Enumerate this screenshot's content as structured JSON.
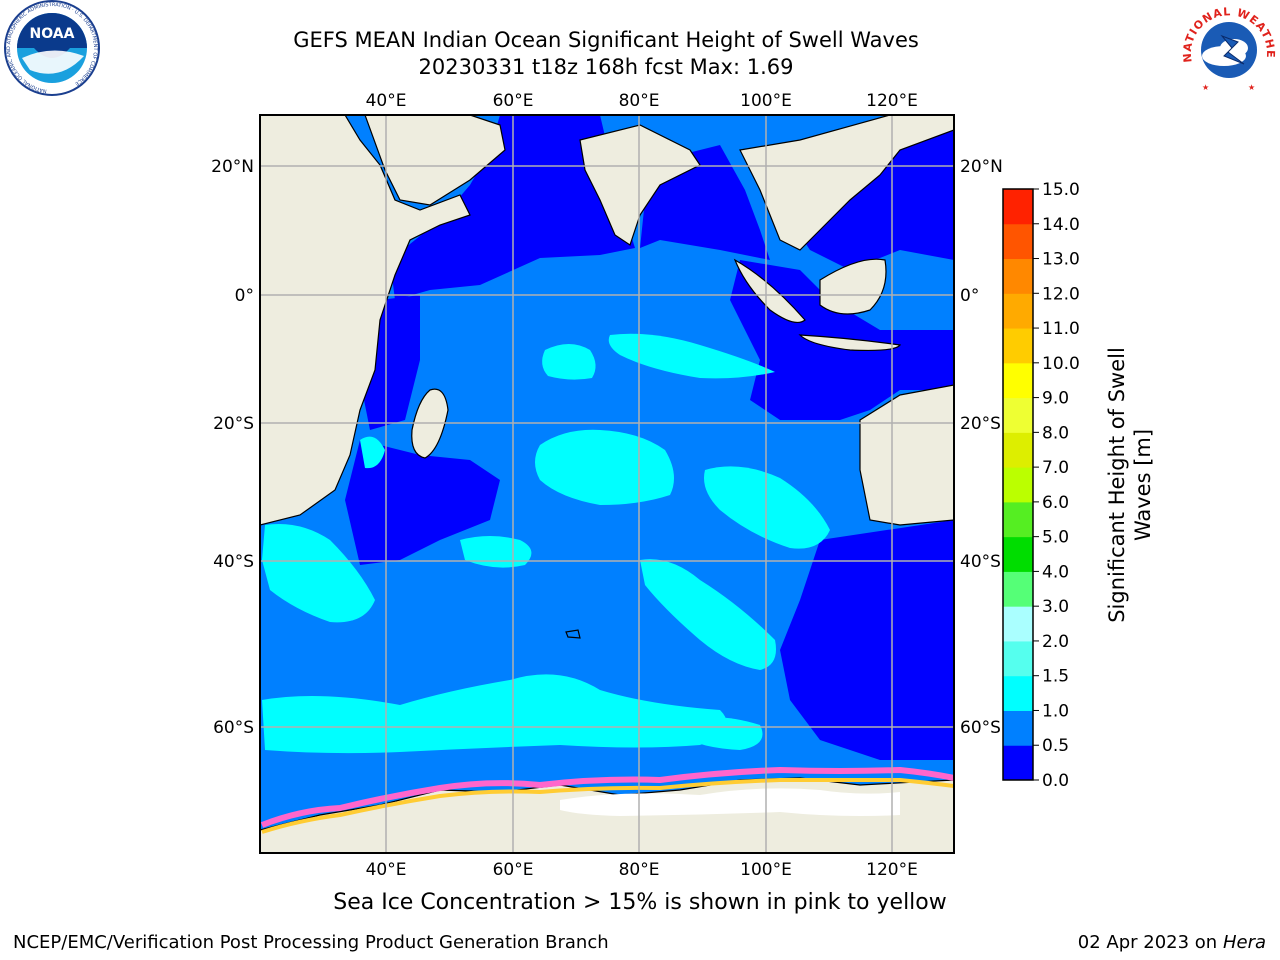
{
  "header": {
    "title_line1": "GEFS MEAN Indian Ocean Significant Height of Swell Waves",
    "title_line2": "20230331 t18z 168h fcst   Max: 1.69"
  },
  "logos": {
    "left": "NOAA",
    "left_ring_text": "NATIONAL OCEANIC AND ATMOSPHERIC ADMINISTRATION · U.S. DEPARTMENT OF COMMERCE",
    "right_ring_text": "NATIONAL WEATHER SERVICE"
  },
  "map": {
    "lon_labels": [
      "40°E",
      "60°E",
      "80°E",
      "100°E",
      "120°E"
    ],
    "lat_labels": [
      "20°N",
      "0°",
      "20°S",
      "40°S",
      "60°S"
    ],
    "colors": {
      "land": "#eeeddf",
      "swell_0_05": "#0000ff",
      "swell_05_10": "#0080ff",
      "swell_10_15": "#00ffff",
      "ice_pink": "#ff66cc",
      "ice_yellow": "#ffcc33"
    }
  },
  "colorbar": {
    "label": "Significant Height of Swell Waves [m]",
    "ticks": [
      "0.0",
      "0.5",
      "1.0",
      "1.5",
      "2.0",
      "3.0",
      "4.0",
      "5.0",
      "6.0",
      "7.0",
      "8.0",
      "9.0",
      "10.0",
      "11.0",
      "12.0",
      "13.0",
      "14.0",
      "15.0"
    ],
    "colors": [
      "#0000ff",
      "#0080ff",
      "#00ffff",
      "#55ffee",
      "#aaffff",
      "#55ff77",
      "#00dd00",
      "#55ee22",
      "#bbff00",
      "#ddee00",
      "#eeff33",
      "#ffff00",
      "#ffcc00",
      "#ffaa00",
      "#ff8800",
      "#ff5500",
      "#ff2200"
    ]
  },
  "caption": "Sea Ice Concentration > 15% is shown in pink to yellow",
  "footer": {
    "left": "NCEP/EMC/Verification Post Processing Product Generation Branch",
    "right_date": "02 Apr 2023 on ",
    "right_host": "Hera"
  }
}
